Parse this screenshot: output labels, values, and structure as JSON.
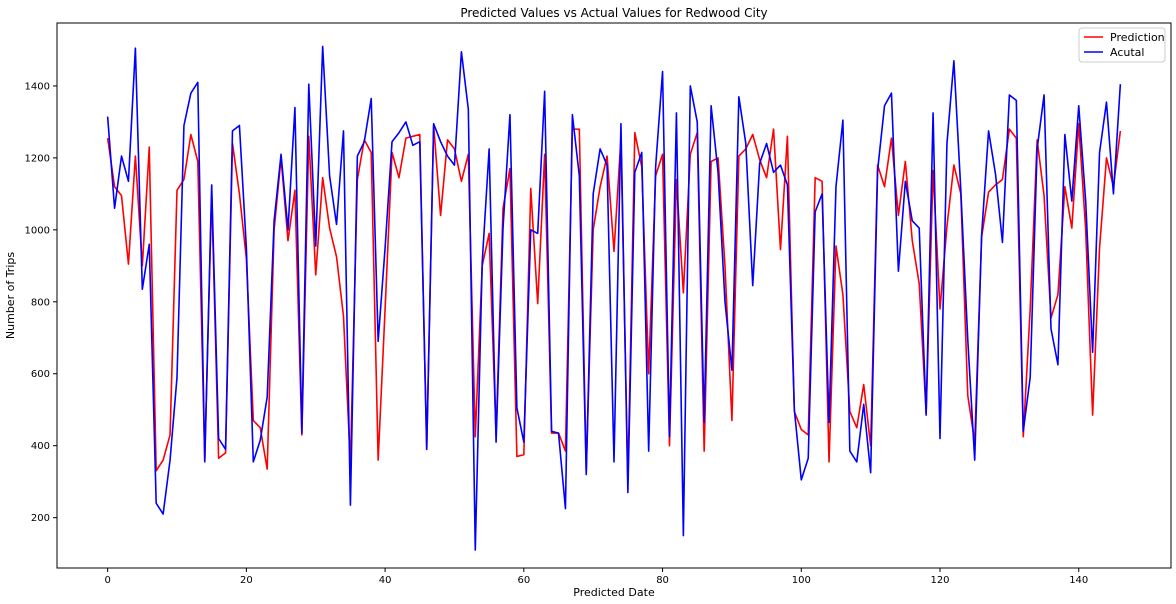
{
  "chart_data": {
    "type": "line",
    "title": "Predicted Values vs Actual Values for Redwood City",
    "xlabel": "Predicted Date",
    "ylabel": "Number of Trips",
    "xlim": [
      -7.3,
      153.3
    ],
    "ylim": [
      60,
      1575
    ],
    "xticks": [
      0,
      20,
      40,
      60,
      80,
      100,
      120,
      140
    ],
    "yticks": [
      200,
      400,
      600,
      800,
      1000,
      1200,
      1400
    ],
    "grid": false,
    "legend_position": "top-right",
    "series": [
      {
        "name": "Prediction",
        "color": "#ff0000",
        "values": [
          1255,
          1120,
          1095,
          905,
          1205,
          900,
          1230,
          330,
          360,
          430,
          1110,
          1140,
          1265,
          1190,
          360,
          1100,
          365,
          380,
          1240,
          1100,
          920,
          470,
          450,
          335,
          1000,
          1200,
          970,
          1110,
          430,
          1260,
          875,
          1145,
          1005,
          925,
          760,
          350,
          1140,
          1250,
          1215,
          360,
          780,
          1215,
          1145,
          1255,
          1260,
          1265,
          390,
          1290,
          1040,
          1250,
          1225,
          1135,
          1210,
          425,
          900,
          990,
          430,
          1060,
          1170,
          370,
          375,
          1115,
          795,
          1210,
          435,
          435,
          385,
          1280,
          1280,
          330,
          1000,
          1120,
          1205,
          940,
          1255,
          300,
          1270,
          1175,
          600,
          1150,
          1210,
          400,
          1140,
          825,
          1210,
          1270,
          385,
          1190,
          1200,
          900,
          470,
          1205,
          1225,
          1265,
          1195,
          1145,
          1280,
          945,
          1260,
          495,
          445,
          430,
          1145,
          1135,
          355,
          955,
          820,
          495,
          450,
          570,
          400,
          1180,
          1120,
          1255,
          1040,
          1190,
          970,
          850,
          490,
          1165,
          780,
          1010,
          1180,
          1100,
          540,
          410,
          980,
          1105,
          1125,
          1140,
          1280,
          1255,
          425,
          780,
          1250,
          1095,
          755,
          820,
          1120,
          1005,
          1295,
          1000,
          485,
          950,
          1200,
          1120,
          1275
        ]
      },
      {
        "name": "Acutal",
        "color": "#0000ff",
        "values": [
          1315,
          1060,
          1205,
          1135,
          1505,
          835,
          960,
          240,
          210,
          360,
          590,
          1290,
          1380,
          1410,
          355,
          1125,
          420,
          390,
          1275,
          1290,
          950,
          355,
          415,
          535,
          1025,
          1210,
          1000,
          1340,
          435,
          1405,
          955,
          1510,
          1150,
          1015,
          1275,
          235,
          1205,
          1245,
          1365,
          690,
          950,
          1245,
          1270,
          1300,
          1235,
          1245,
          390,
          1295,
          1245,
          1205,
          1180,
          1495,
          1335,
          110,
          910,
          1225,
          410,
          1005,
          1320,
          505,
          410,
          1000,
          990,
          1385,
          440,
          435,
          225,
          1320,
          1150,
          320,
          1100,
          1225,
          1180,
          355,
          1295,
          270,
          1160,
          1215,
          385,
          1175,
          1440,
          425,
          1325,
          150,
          1400,
          1300,
          465,
          1345,
          1160,
          800,
          610,
          1370,
          1240,
          845,
          1185,
          1240,
          1160,
          1180,
          1125,
          500,
          305,
          365,
          1050,
          1100,
          465,
          1120,
          1305,
          385,
          355,
          515,
          325,
          1165,
          1345,
          1380,
          885,
          1135,
          1025,
          1005,
          485,
          1325,
          420,
          1240,
          1470,
          1110,
          695,
          360,
          985,
          1275,
          1155,
          965,
          1375,
          1360,
          440,
          590,
          1225,
          1375,
          725,
          625,
          1265,
          1080,
          1345,
          1080,
          660,
          1215,
          1355,
          1100,
          1405
        ]
      }
    ]
  }
}
